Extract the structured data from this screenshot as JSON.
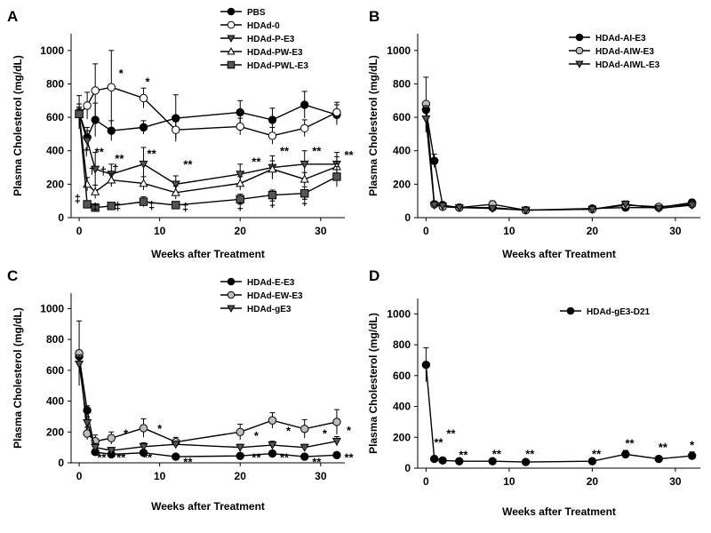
{
  "chart_data": [
    {
      "panel": "A",
      "type": "line",
      "xlabel": "Weeks after Treatment",
      "ylabel": "Plasma Cholesterol (mg/dL)",
      "xlim": [
        -1,
        33
      ],
      "ylim": [
        0,
        1100
      ],
      "xticks": [
        0,
        10,
        20,
        30
      ],
      "yticks": [
        0,
        200,
        400,
        600,
        800,
        1000
      ],
      "legend_position": "top-right",
      "series": [
        {
          "name": "PBS",
          "marker": "circle-filled",
          "x": [
            0,
            1,
            2,
            4,
            8,
            12,
            20,
            24,
            28,
            32
          ],
          "y": [
            630,
            480,
            585,
            520,
            540,
            595,
            630,
            585,
            675,
            615
          ],
          "err": [
            100,
            60,
            100,
            60,
            40,
            140,
            70,
            70,
            80,
            60
          ]
        },
        {
          "name": "HDAd-0",
          "marker": "circle-open",
          "x": [
            0,
            1,
            2,
            4,
            8,
            12,
            20,
            24,
            28,
            32
          ],
          "y": [
            620,
            670,
            760,
            780,
            715,
            525,
            545,
            490,
            535,
            630
          ],
          "err": [
            60,
            80,
            160,
            220,
            60,
            50,
            50,
            50,
            50,
            60
          ]
        },
        {
          "name": "HDAd-P-E3",
          "marker": "triangle-down-filled",
          "x": [
            0,
            1,
            2,
            4,
            8,
            12,
            20,
            24,
            28,
            32
          ],
          "y": [
            620,
            460,
            290,
            260,
            320,
            200,
            260,
            300,
            320,
            320
          ],
          "err": [
            40,
            60,
            100,
            60,
            100,
            50,
            60,
            70,
            80,
            70
          ]
        },
        {
          "name": "HDAd-PW-E3",
          "marker": "triangle-up-open",
          "x": [
            0,
            1,
            2,
            4,
            8,
            12,
            20,
            24,
            28,
            32
          ],
          "y": [
            620,
            200,
            155,
            225,
            205,
            150,
            205,
            290,
            230,
            305
          ],
          "err": [
            40,
            40,
            40,
            40,
            40,
            40,
            40,
            50,
            40,
            60
          ]
        },
        {
          "name": "HDAd-PWL-E3",
          "marker": "square-filled",
          "x": [
            0,
            1,
            2,
            4,
            8,
            12,
            20,
            24,
            28,
            32
          ],
          "y": [
            620,
            80,
            60,
            70,
            95,
            75,
            110,
            135,
            145,
            245
          ],
          "err": [
            40,
            20,
            20,
            20,
            30,
            20,
            30,
            30,
            40,
            60
          ]
        }
      ],
      "annotations": [
        {
          "text": "*",
          "x": 5.2,
          "y": 840
        },
        {
          "text": "*",
          "x": 8.5,
          "y": 790
        },
        {
          "text": "**",
          "x": 2.5,
          "y": 370
        },
        {
          "text": "**",
          "x": 5.0,
          "y": 330
        },
        {
          "text": "**",
          "x": 9.0,
          "y": 360
        },
        {
          "text": "**",
          "x": 13.5,
          "y": 295
        },
        {
          "text": "**",
          "x": 22.0,
          "y": 310
        },
        {
          "text": "**",
          "x": 25.5,
          "y": 375
        },
        {
          "text": "**",
          "x": 29.5,
          "y": 375
        },
        {
          "text": "**",
          "x": 33.5,
          "y": 350
        },
        {
          "text": "†",
          "x": 0.9,
          "y": 370
        },
        {
          "text": "†",
          "x": 1.6,
          "y": 260
        },
        {
          "text": "†",
          "x": 3.0,
          "y": 255
        },
        {
          "text": "†",
          "x": 4.5,
          "y": 270
        },
        {
          "text": "‡",
          "x": -0.2,
          "y": 90
        },
        {
          "text": "‡",
          "x": 2.0,
          "y": 40
        },
        {
          "text": "‡",
          "x": 4.8,
          "y": 45
        },
        {
          "text": "‡",
          "x": 9.0,
          "y": 50
        },
        {
          "text": "‡",
          "x": 13.2,
          "y": 40
        },
        {
          "text": "‡",
          "x": 20.0,
          "y": 45
        },
        {
          "text": "‡",
          "x": 24.0,
          "y": 65
        },
        {
          "text": "‡",
          "x": 28.0,
          "y": 75
        }
      ]
    },
    {
      "panel": "B",
      "type": "line",
      "xlabel": "Weeks after Treatment",
      "ylabel": "Plasma Cholesterol (mg/dL)",
      "xlim": [
        -1,
        33
      ],
      "ylim": [
        0,
        1100
      ],
      "xticks": [
        0,
        10,
        20,
        30
      ],
      "yticks": [
        0,
        200,
        400,
        600,
        800,
        1000
      ],
      "legend_position": "top-right",
      "series": [
        {
          "name": "HDAd-AI-E3",
          "marker": "circle-filled",
          "x": [
            0,
            1,
            2,
            4,
            8,
            12,
            20,
            24,
            28,
            32
          ],
          "y": [
            645,
            340,
            75,
            60,
            60,
            45,
            55,
            60,
            60,
            90
          ],
          "err": [
            50,
            40,
            20,
            15,
            15,
            10,
            15,
            15,
            15,
            20
          ]
        },
        {
          "name": "HDAd-AIW-E3",
          "marker": "circle-grey",
          "x": [
            0,
            1,
            2,
            4,
            8,
            12,
            20,
            24,
            28,
            32
          ],
          "y": [
            680,
            80,
            65,
            60,
            80,
            45,
            50,
            75,
            65,
            80
          ],
          "err": [
            160,
            20,
            20,
            15,
            20,
            10,
            15,
            20,
            15,
            20
          ]
        },
        {
          "name": "HDAd-AIWL-E3",
          "marker": "triangle-down-filled",
          "x": [
            0,
            1,
            2,
            4,
            8,
            12,
            20,
            24,
            28,
            32
          ],
          "y": [
            590,
            75,
            70,
            60,
            55,
            45,
            50,
            80,
            55,
            75
          ],
          "err": [
            80,
            20,
            20,
            15,
            15,
            10,
            15,
            20,
            15,
            20
          ]
        }
      ],
      "annotations": []
    },
    {
      "panel": "C",
      "type": "line",
      "xlabel": "Weeks after Treatment",
      "ylabel": "Plasma Cholesterol (mg/dL)",
      "xlim": [
        -1,
        33
      ],
      "ylim": [
        0,
        1100
      ],
      "xticks": [
        0,
        10,
        20,
        30
      ],
      "yticks": [
        0,
        200,
        400,
        600,
        800,
        1000
      ],
      "legend_position": "top-right",
      "series": [
        {
          "name": "HDAd-E-E3",
          "marker": "circle-filled",
          "x": [
            0,
            1,
            2,
            4,
            8,
            12,
            20,
            24,
            28,
            32
          ],
          "y": [
            690,
            340,
            70,
            55,
            65,
            40,
            45,
            60,
            40,
            50
          ],
          "err": [
            40,
            30,
            15,
            10,
            10,
            10,
            10,
            10,
            10,
            10
          ]
        },
        {
          "name": "HDAd-EW-E3",
          "marker": "circle-grey",
          "x": [
            0,
            1,
            2,
            4,
            8,
            12,
            20,
            24,
            28,
            32
          ],
          "y": [
            710,
            190,
            140,
            160,
            225,
            135,
            200,
            275,
            220,
            265
          ],
          "err": [
            210,
            40,
            40,
            40,
            60,
            30,
            50,
            50,
            60,
            80
          ]
        },
        {
          "name": "HDAd-gE3",
          "marker": "triangle-down-filled",
          "x": [
            0,
            1,
            2,
            4,
            8,
            12,
            20,
            24,
            28,
            32
          ],
          "y": [
            640,
            260,
            100,
            80,
            105,
            120,
            100,
            115,
            100,
            140
          ],
          "err": [
            60,
            40,
            25,
            20,
            25,
            20,
            20,
            25,
            20,
            30
          ]
        }
      ],
      "annotations": [
        {
          "text": "*",
          "x": 5.8,
          "y": 165
        },
        {
          "text": "*",
          "x": 10.0,
          "y": 195
        },
        {
          "text": "*",
          "x": 22.0,
          "y": 150
        },
        {
          "text": "*",
          "x": 26.0,
          "y": 180
        },
        {
          "text": "*",
          "x": 30.5,
          "y": 165
        },
        {
          "text": "*",
          "x": 33.5,
          "y": 185
        },
        {
          "text": "**",
          "x": 2.8,
          "y": 10
        },
        {
          "text": "**",
          "x": 5.2,
          "y": 10
        },
        {
          "text": "**",
          "x": 8.5,
          "y": 10
        },
        {
          "text": "**",
          "x": 13.5,
          "y": -20
        },
        {
          "text": "**",
          "x": 22.0,
          "y": 10
        },
        {
          "text": "**",
          "x": 25.5,
          "y": 10
        },
        {
          "text": "**",
          "x": 29.5,
          "y": -20
        },
        {
          "text": "**",
          "x": 33.5,
          "y": 10
        }
      ]
    },
    {
      "panel": "D",
      "type": "line",
      "xlabel": "Weeks after Treatment",
      "ylabel": "Plasma Cholesterol (mg/dL)",
      "xlim": [
        -1,
        33
      ],
      "ylim": [
        0,
        1100
      ],
      "xticks": [
        0,
        10,
        20,
        30
      ],
      "yticks": [
        0,
        200,
        400,
        600,
        800,
        1000
      ],
      "legend_position": "top-right",
      "series": [
        {
          "name": "HDAd-gE3-D21",
          "marker": "circle-filled",
          "x": [
            0,
            1,
            2,
            4,
            8,
            12,
            20,
            24,
            28,
            32
          ],
          "y": [
            670,
            60,
            50,
            45,
            45,
            40,
            45,
            90,
            60,
            80
          ],
          "err": [
            110,
            15,
            10,
            10,
            10,
            10,
            10,
            25,
            15,
            25
          ]
        }
      ],
      "annotations": [
        {
          "text": "**",
          "x": 1.5,
          "y": 140
        },
        {
          "text": "**",
          "x": 3.0,
          "y": 200
        },
        {
          "text": "**",
          "x": 4.5,
          "y": 60
        },
        {
          "text": "**",
          "x": 8.5,
          "y": 65
        },
        {
          "text": "**",
          "x": 12.5,
          "y": 65
        },
        {
          "text": "**",
          "x": 20.5,
          "y": 65
        },
        {
          "text": "**",
          "x": 24.5,
          "y": 135
        },
        {
          "text": "**",
          "x": 28.5,
          "y": 110
        },
        {
          "text": "*",
          "x": 32.0,
          "y": 125
        }
      ]
    }
  ]
}
